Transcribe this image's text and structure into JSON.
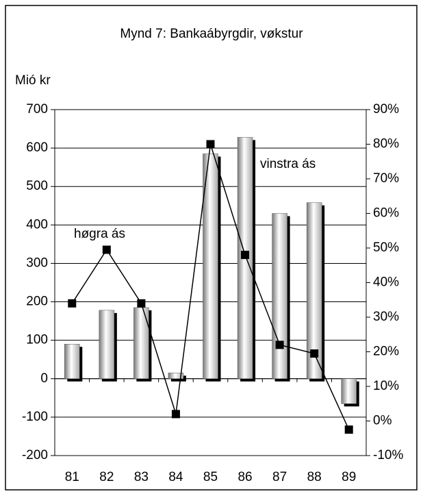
{
  "chart_data": {
    "type": "bar",
    "title": "Mynd 7: Bankaábyrgdir, vøkstur",
    "ylabel": "Mió kr",
    "categories": [
      "81",
      "82",
      "83",
      "84",
      "85",
      "86",
      "87",
      "88",
      "89"
    ],
    "series": [
      {
        "type": "bar",
        "color": "#a8a8a8",
        "values": [
          90,
          178,
          185,
          15,
          585,
          628,
          430,
          458,
          -65
        ]
      },
      {
        "type": "line",
        "axis": "y2",
        "color": "#000000",
        "values": [
          34,
          49.5,
          34,
          2,
          80,
          48,
          22,
          19.5,
          -2.5
        ]
      }
    ],
    "ylim": [
      -200,
      700
    ],
    "yticks": [
      -200,
      -100,
      0,
      100,
      200,
      300,
      400,
      500,
      600,
      700
    ],
    "y2lim": [
      -10,
      90
    ],
    "y2ticks": [
      {
        "value": -10,
        "label": "-10%"
      },
      {
        "value": 0,
        "label": "0%"
      },
      {
        "value": 10,
        "label": "10%"
      },
      {
        "value": 20,
        "label": "20%"
      },
      {
        "value": 30,
        "label": "30%"
      },
      {
        "value": 40,
        "label": "40%"
      },
      {
        "value": 50,
        "label": "50%"
      },
      {
        "value": 60,
        "label": "60%"
      },
      {
        "value": 70,
        "label": "70%"
      },
      {
        "value": 80,
        "label": "80%"
      },
      {
        "value": 90,
        "label": "90%"
      }
    ],
    "grid": true,
    "annotations": [
      "høgra ás",
      "vinstra ás"
    ]
  }
}
